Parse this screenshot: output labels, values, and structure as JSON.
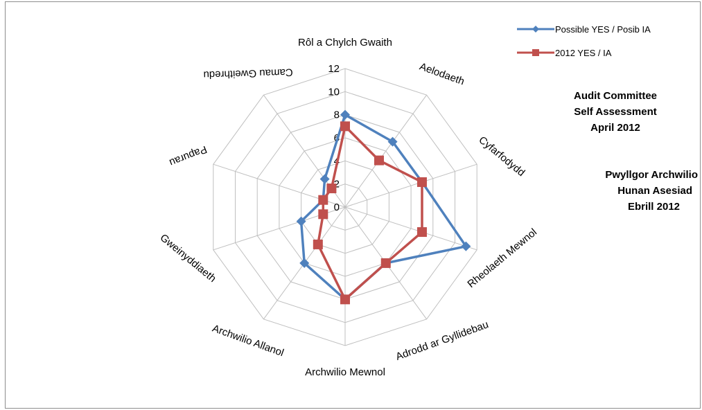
{
  "chart_data": {
    "type": "radar",
    "categories": [
      "Rôl a Chylch Gwaith",
      "Aelodaeth",
      "Cyfarfodydd",
      "Rheolaeth Mewnol",
      "Adrodd ar Gyllidebau",
      "Archwilio Mewnol",
      "Archwilio Allanol",
      "Gweinyddiaeth",
      "Papurau",
      "Camau Gweithredu"
    ],
    "series": [
      {
        "name": "Possible YES / Posib IA",
        "values": [
          8,
          7,
          7,
          11,
          6,
          8,
          6,
          4,
          2,
          3
        ],
        "color": "#4f81bd",
        "marker": "diamond"
      },
      {
        "name": "2012 YES / IA",
        "values": [
          7,
          5,
          7,
          7,
          6,
          8,
          4,
          2,
          2,
          2
        ],
        "color": "#c0504d",
        "marker": "square"
      }
    ],
    "r_ticks": [
      "0",
      "2",
      "4",
      "6",
      "8",
      "10",
      "12"
    ],
    "r_range": [
      0,
      12
    ],
    "grid": true,
    "legend_position": "top-right"
  },
  "annotations": {
    "english": [
      "Audit Committee",
      "Self Assessment",
      "April 2012"
    ],
    "welsh": [
      "Pwyllgor Archwilio",
      "Hunan Asesiad",
      "Ebrill 2012"
    ]
  }
}
